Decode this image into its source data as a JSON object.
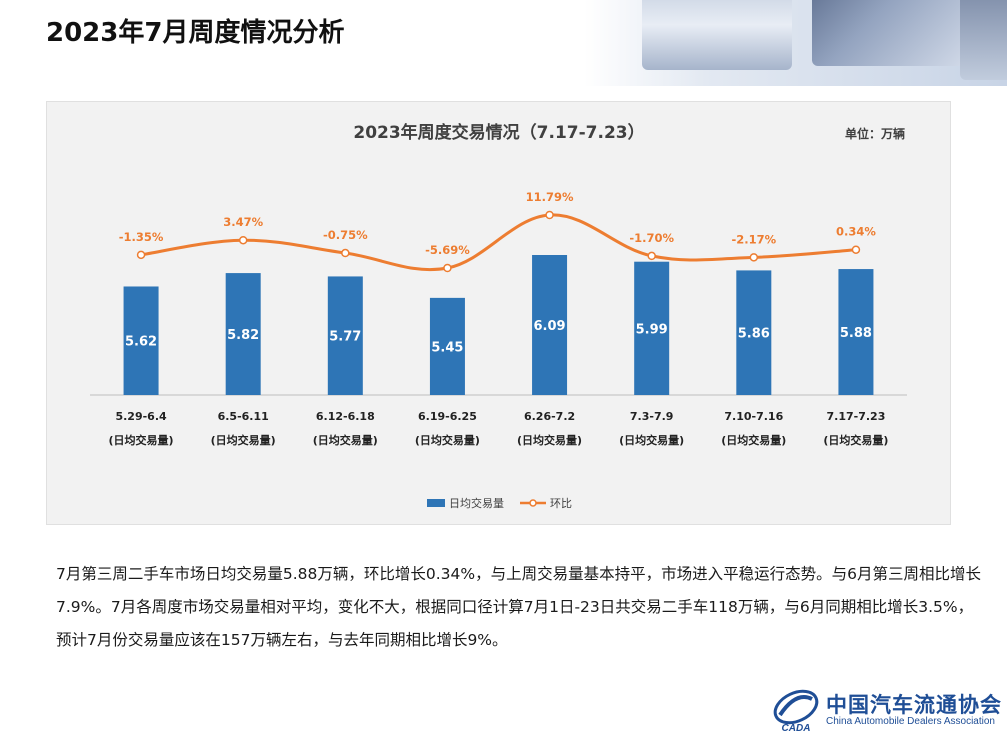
{
  "page": {
    "title": "2023年7月周度情况分析",
    "paragraph": "7月第三周二手车市场日均交易量5.88万辆，环比增长0.34%，与上周交易量基本持平，市场进入平稳运行态势。与6月第三周相比增长7.9%。7月各周度市场交易量相对平均，变化不大，根据同口径计算7月1日-23日共交易二手车118万辆，与6月同期相比增长3.5%，预计7月份交易量应该在157万辆左右，与去年同期相比增长9%。"
  },
  "logo": {
    "cn": "中国汽车流通协会",
    "en": "China Automobile Dealers Association",
    "emblem_text": "CADA"
  },
  "chart_data": {
    "type": "bar",
    "title": "2023年周度交易情况（7.17-7.23）",
    "unit": "单位：万辆",
    "categories": [
      "5.29-6.4",
      "6.5-6.11",
      "6.12-6.18",
      "6.19-6.25",
      "6.26-7.2",
      "7.3-7.9",
      "7.10-7.16",
      "7.17-7.23"
    ],
    "category_sublabel": "(日均交易量)",
    "series": [
      {
        "name": "日均交易量",
        "type": "bar",
        "color": "#2e75b6",
        "values": [
          5.62,
          5.82,
          5.77,
          5.45,
          6.09,
          5.99,
          5.86,
          5.88
        ],
        "labels": [
          "5.62",
          "5.82",
          "5.77",
          "5.45",
          "6.09",
          "5.99",
          "5.86",
          "5.88"
        ]
      },
      {
        "name": "环比",
        "type": "line",
        "color": "#ed7d31",
        "values": [
          -1.35,
          3.47,
          -0.75,
          -5.69,
          11.79,
          -1.7,
          -2.17,
          0.34
        ],
        "labels": [
          "-1.35%",
          "3.47%",
          "-0.75%",
          "-5.69%",
          "11.79%",
          "-1.70%",
          "-2.17%",
          "0.34%"
        ]
      }
    ],
    "legend_position": "bottom",
    "grid": false
  }
}
